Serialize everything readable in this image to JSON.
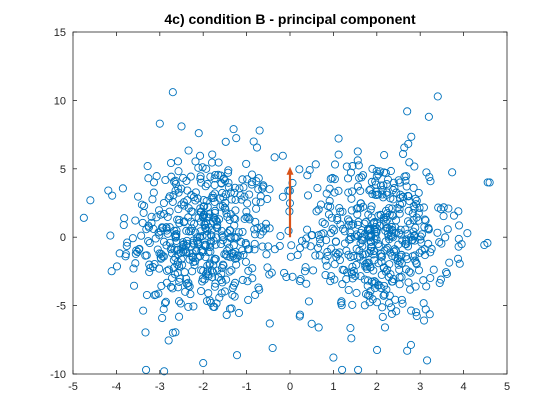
{
  "chart_data": {
    "type": "scatter",
    "title": "4c) condition B - principal component",
    "xlabel": "",
    "ylabel": "",
    "xlim": [
      -5,
      5
    ],
    "ylim": [
      -10,
      15
    ],
    "xticks": [
      -5,
      -4,
      -3,
      -2,
      -1,
      0,
      1,
      2,
      3,
      4,
      5
    ],
    "yticks": [
      -10,
      -5,
      0,
      5,
      10,
      15
    ],
    "grid": false,
    "legend": "none",
    "marker_color": "#0072BD",
    "marker": "open-circle",
    "principal_component": {
      "x0": 0,
      "y0": 0,
      "x1": 0,
      "y1": 5,
      "color": "#D95319"
    },
    "clusters": [
      {
        "center_x": -2,
        "center_y": 0,
        "spread_x": 0.85,
        "spread_y": 3.0,
        "n": 500
      },
      {
        "center_x": 2,
        "center_y": 0,
        "spread_x": 0.85,
        "spread_y": 3.0,
        "n": 500
      }
    ],
    "outliers": [
      {
        "x": -2.7,
        "y": 10.6
      },
      {
        "x": 2.7,
        "y": 9.2
      },
      {
        "x": 3.2,
        "y": 8.8
      },
      {
        "x": -3.0,
        "y": 8.3
      },
      {
        "x": -2.5,
        "y": 8.1
      },
      {
        "x": -1.3,
        "y": 7.9
      },
      {
        "x": -0.7,
        "y": 7.8
      },
      {
        "x": -2.9,
        "y": -9.8
      },
      {
        "x": -2.0,
        "y": -9.2
      },
      {
        "x": 1.0,
        "y": -8.8
      },
      {
        "x": 1.2,
        "y": -9.7
      },
      {
        "x": -4.6,
        "y": 2.7
      },
      {
        "x": 4.6,
        "y": 4.0
      },
      {
        "x": -0.4,
        "y": -8.1
      },
      {
        "x": 2.7,
        "y": -8.3
      }
    ]
  }
}
